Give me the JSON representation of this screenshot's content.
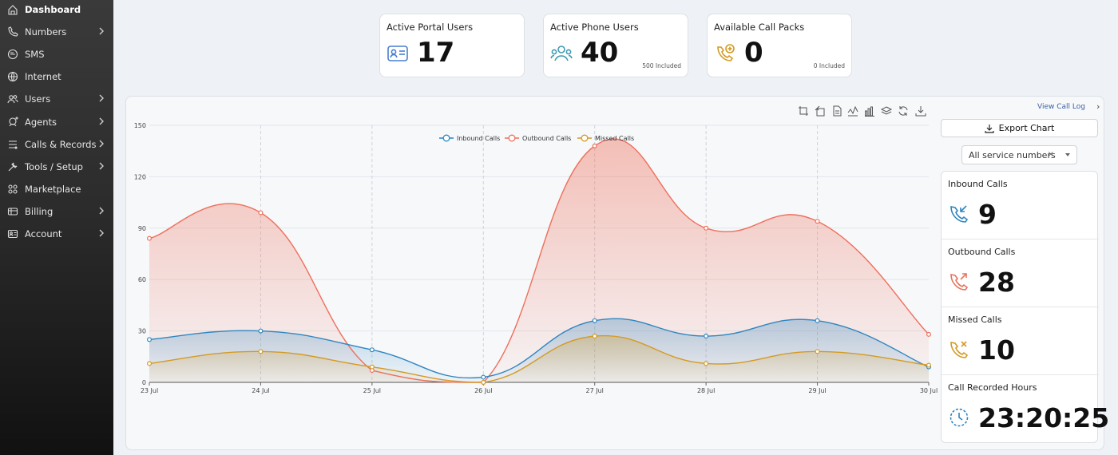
{
  "sidebar": {
    "items": [
      {
        "label": "Dashboard",
        "icon": "home-icon",
        "active": true,
        "chevron": false
      },
      {
        "label": "Numbers",
        "icon": "phone-icon",
        "active": false,
        "chevron": true
      },
      {
        "label": "SMS",
        "icon": "chat-icon",
        "active": false,
        "chevron": false
      },
      {
        "label": "Internet",
        "icon": "globe-icon",
        "active": false,
        "chevron": false
      },
      {
        "label": "Users",
        "icon": "users-icon",
        "active": false,
        "chevron": true
      },
      {
        "label": "Agents",
        "icon": "agent-icon",
        "active": false,
        "chevron": true
      },
      {
        "label": "Calls & Records",
        "icon": "list-icon",
        "active": false,
        "chevron": true
      },
      {
        "label": "Tools / Setup",
        "icon": "tools-icon",
        "active": false,
        "chevron": true
      },
      {
        "label": "Marketplace",
        "icon": "grid-icon",
        "active": false,
        "chevron": false
      },
      {
        "label": "Billing",
        "icon": "card-icon",
        "active": false,
        "chevron": true
      },
      {
        "label": "Account",
        "icon": "id-card-icon",
        "active": false,
        "chevron": true
      }
    ]
  },
  "cards": [
    {
      "title": "Active Portal Users",
      "value": "17",
      "note": "",
      "icon": "portal-user-icon",
      "color": "#4a7fd0"
    },
    {
      "title": "Active Phone Users",
      "value": "40",
      "note": "500 Included",
      "icon": "phone-users-icon",
      "color": "#3f9bb0"
    },
    {
      "title": "Available Call Packs",
      "value": "0",
      "note": "0 Included",
      "icon": "call-pack-icon",
      "color": "#d49a22"
    }
  ],
  "view_call_log": "View Call Log",
  "export_label": "Export Chart",
  "service_select": {
    "value": "All service numbers",
    "clear": "×"
  },
  "stats": [
    {
      "label": "Inbound Calls",
      "value": "9",
      "icon": "inbound-call-icon",
      "color": "#2f86c0"
    },
    {
      "label": "Outbound Calls",
      "value": "28",
      "icon": "outbound-call-icon",
      "color": "#e8735d"
    },
    {
      "label": "Missed Calls",
      "value": "10",
      "icon": "missed-call-icon",
      "color": "#d49a22"
    },
    {
      "label": "Call Recorded Hours",
      "value": "23:20:25",
      "icon": "clock-icon",
      "color": "#2f86c0"
    }
  ],
  "chart_data": {
    "type": "area",
    "categories": [
      "23 Jul",
      "24 Jul",
      "25 Jul",
      "26 Jul",
      "27 Jul",
      "28 Jul",
      "29 Jul",
      "30 Jul"
    ],
    "ylim": [
      0,
      150
    ],
    "yticks": [
      0,
      30,
      60,
      90,
      120,
      150
    ],
    "grid": true,
    "legend": "top-center",
    "series": [
      {
        "name": "Inbound Calls",
        "color": "#2f86c0",
        "values": [
          25,
          30,
          19,
          3,
          36,
          27,
          36,
          9
        ]
      },
      {
        "name": "Outbound Calls",
        "color": "#ef6f5a",
        "values": [
          84,
          99,
          7,
          0,
          138,
          90,
          94,
          28
        ]
      },
      {
        "name": "Missed Calls",
        "color": "#d49a22",
        "values": [
          11,
          18,
          9,
          0,
          27,
          11,
          18,
          10
        ]
      }
    ]
  }
}
